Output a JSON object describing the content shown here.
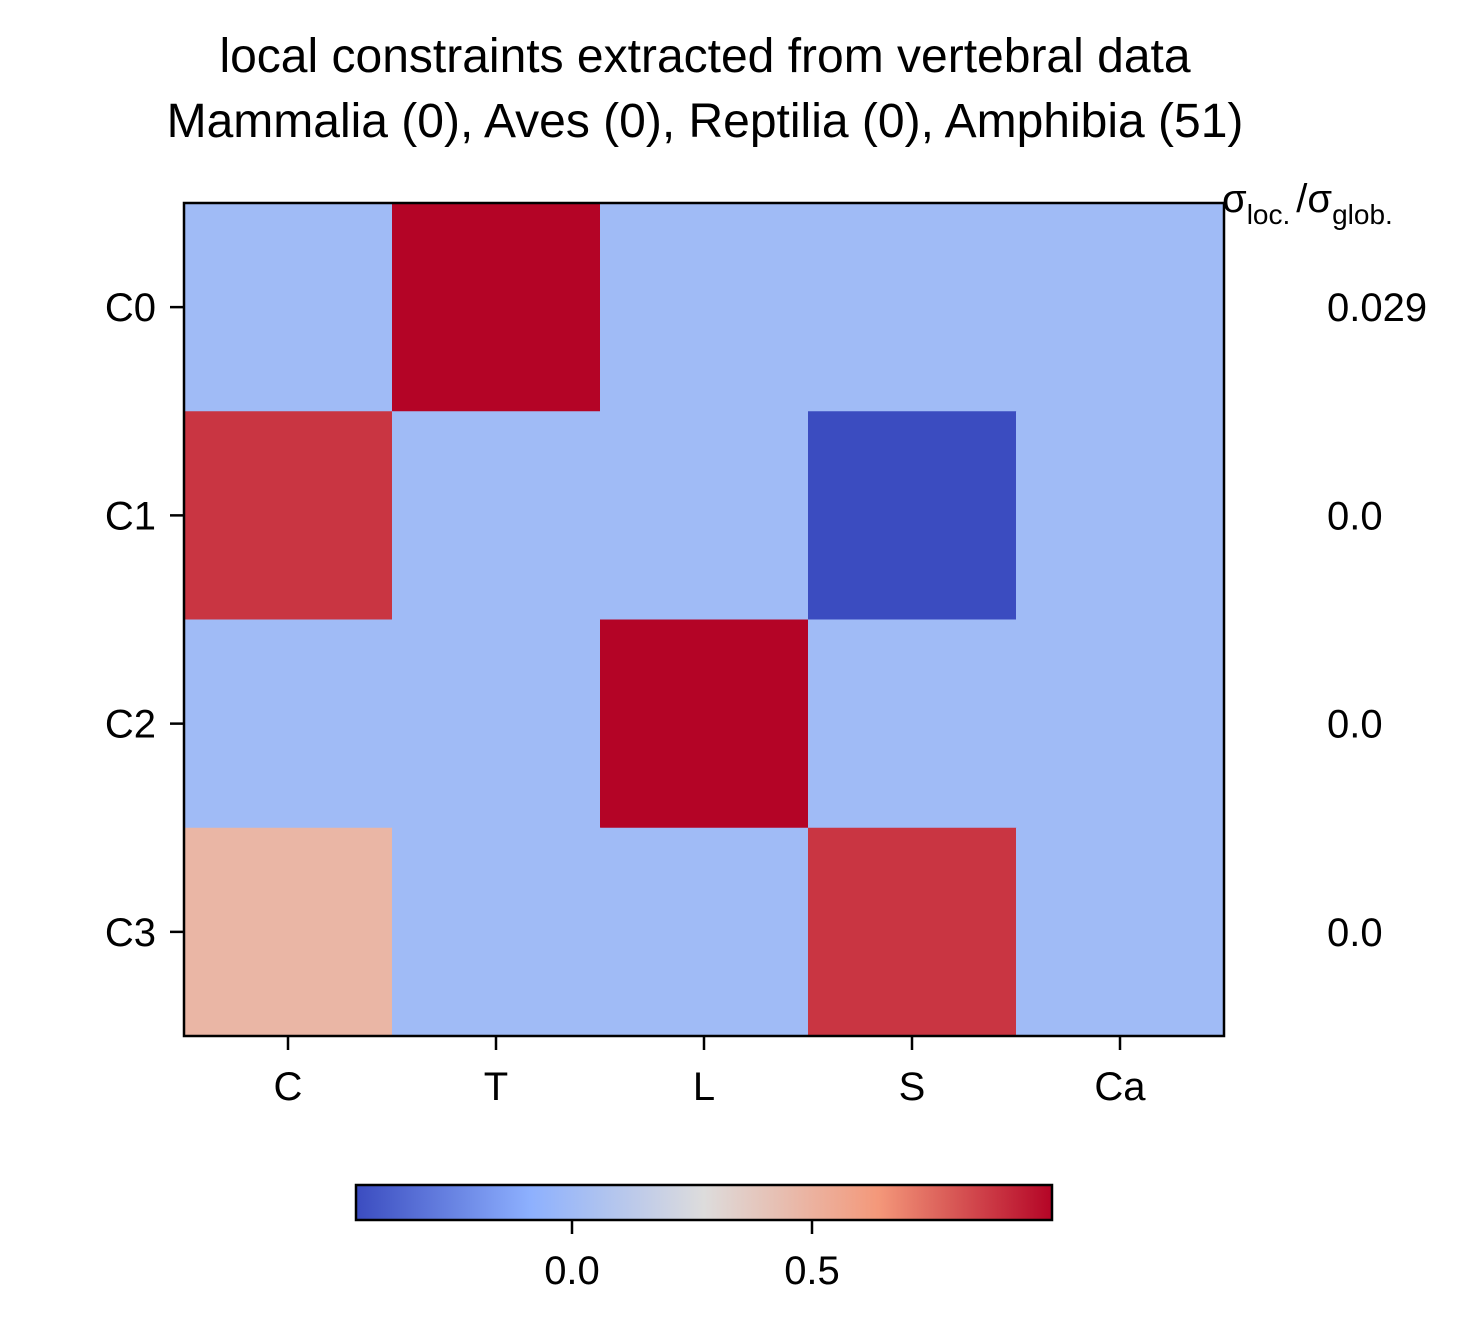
{
  "chart_data": {
    "type": "heatmap",
    "title": "local constraints extracted from vertebral data",
    "subtitle": "Mammalia (0), Aves (0), Reptilia (0), Amphibia (51)",
    "x_categories": [
      "C",
      "T",
      "L",
      "S",
      "Ca"
    ],
    "y_categories": [
      "C0",
      "C1",
      "C2",
      "C3"
    ],
    "values": [
      [
        0.0,
        1.0,
        0.0,
        0.0,
        0.0
      ],
      [
        0.88,
        0.0,
        0.0,
        -0.45,
        0.0
      ],
      [
        0.0,
        0.0,
        1.0,
        0.0,
        0.0
      ],
      [
        0.48,
        0.0,
        0.0,
        0.88,
        0.0
      ]
    ],
    "ratio_label": {
      "sigma": "σ",
      "loc_sub": "loc.",
      "sep": "/",
      "glob_sub": "glob."
    },
    "ratios": [
      "0.029",
      "0.0",
      "0.0",
      "0.0"
    ],
    "colorbar": {
      "colormap": "coolwarm",
      "vmin": -0.45,
      "vmax": 1.0,
      "ticks": [
        0.0,
        0.5
      ],
      "tick_labels": [
        "0.0",
        "0.5"
      ],
      "orientation": "horizontal",
      "position": "bottom"
    },
    "colors": {
      "low": "#3b4cc0",
      "mid": "#dddcdc",
      "high": "#b40426"
    }
  }
}
